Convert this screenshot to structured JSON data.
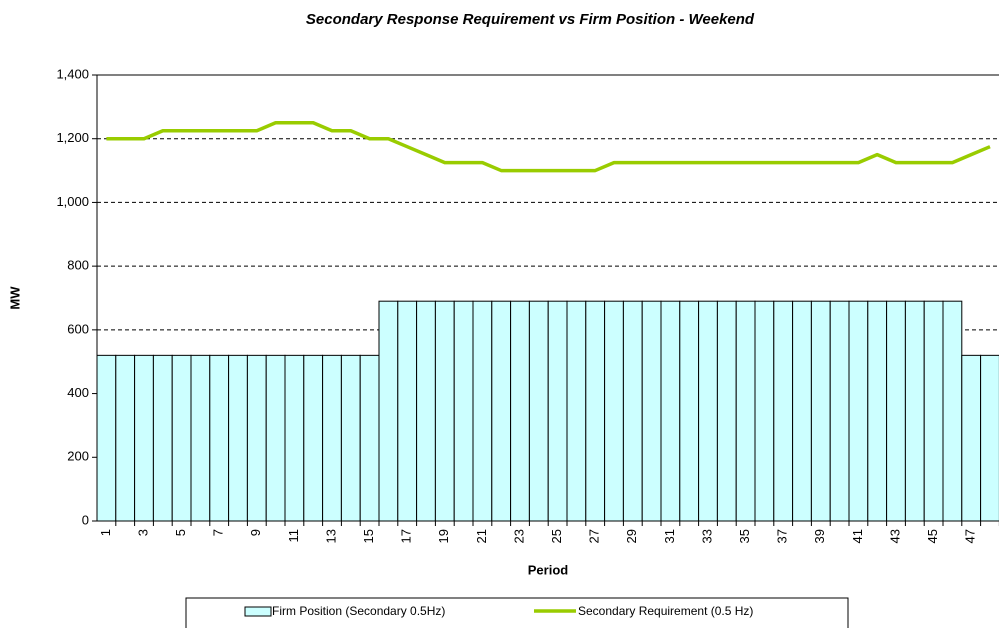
{
  "chart_data": {
    "type": "bar_line",
    "title": "Secondary Response Requirement vs Firm Position - Weekend",
    "x_label": "Period",
    "y_label": "MW",
    "categories": [
      1,
      null,
      3,
      null,
      5,
      null,
      7,
      null,
      9,
      null,
      11,
      null,
      13,
      null,
      15,
      null,
      17,
      null,
      19,
      null,
      21,
      null,
      23,
      null,
      25,
      null,
      27,
      null,
      29,
      null,
      31,
      null,
      33,
      null,
      35,
      null,
      37,
      null,
      39,
      null,
      41,
      null,
      43,
      null,
      45,
      null,
      47,
      null
    ],
    "series": [
      {
        "name": "Firm Position (Secondary 0.5Hz)",
        "type": "bar",
        "color": "#ccffff",
        "values": [
          520,
          520,
          520,
          520,
          520,
          520,
          520,
          520,
          520,
          520,
          520,
          520,
          520,
          520,
          520,
          690,
          690,
          690,
          690,
          690,
          690,
          690,
          690,
          690,
          690,
          690,
          690,
          690,
          690,
          690,
          690,
          690,
          690,
          690,
          690,
          690,
          690,
          690,
          690,
          690,
          690,
          690,
          690,
          690,
          690,
          690,
          520,
          520
        ]
      },
      {
        "name": "Secondary Requirement (0.5 Hz)",
        "type": "line",
        "color": "#99cc00",
        "values": [
          1200,
          1200,
          1200,
          1225,
          1225,
          1225,
          1225,
          1225,
          1225,
          1250,
          1250,
          1250,
          1225,
          1225,
          1200,
          1200,
          1175,
          1150,
          1125,
          1125,
          1125,
          1100,
          1100,
          1100,
          1100,
          1100,
          1100,
          1125,
          1125,
          1125,
          1125,
          1125,
          1125,
          1125,
          1125,
          1125,
          1125,
          1125,
          1125,
          1125,
          1125,
          1150,
          1125,
          1125,
          1125,
          1125,
          1150,
          1175
        ]
      }
    ],
    "ylim": [
      0,
      1400
    ],
    "yticks": [
      0,
      200,
      400,
      600,
      800,
      {
        "value": 1000,
        "label": "1,000"
      },
      {
        "value": 1200,
        "label": "1,200"
      },
      {
        "value": 1400,
        "label": "1,400"
      }
    ],
    "grid": true
  }
}
